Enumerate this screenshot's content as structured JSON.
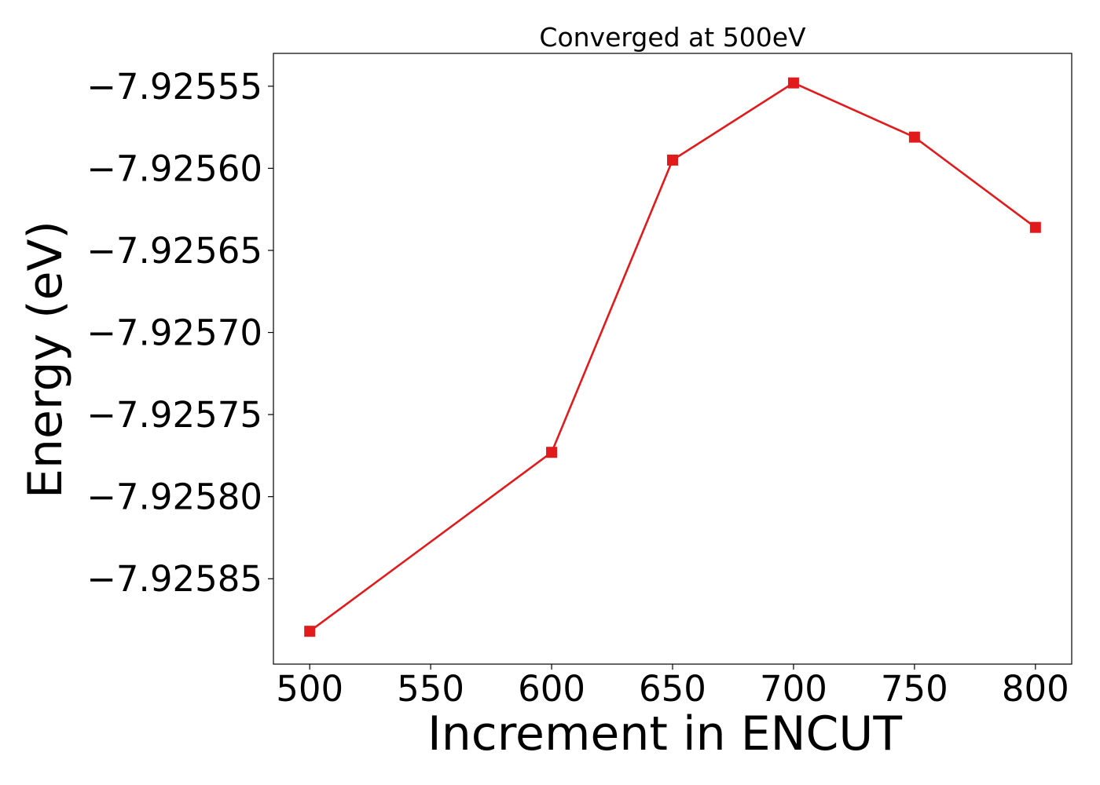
{
  "colors": {
    "series": "#e31a1c",
    "axes": "#000000",
    "background": "#ffffff"
  },
  "chart_data": {
    "type": "line",
    "title": "Converged at 500eV",
    "xlabel": "Increment in ENCUT",
    "ylabel": "Energy (eV)",
    "x": [
      500,
      600,
      650,
      700,
      750,
      800
    ],
    "xlim": [
      485,
      815
    ],
    "ylim": [
      -7.925902,
      -7.92553
    ],
    "xticks": [
      500,
      550,
      600,
      650,
      700,
      750,
      800
    ],
    "xtick_labels": [
      "500",
      "550",
      "600",
      "650",
      "700",
      "750",
      "800"
    ],
    "yticks": [
      -7.92555,
      -7.9256,
      -7.92565,
      -7.9257,
      -7.92575,
      -7.9258,
      -7.92585
    ],
    "ytick_labels": [
      "−7.92555",
      "−7.92560",
      "−7.92565",
      "−7.92570",
      "−7.92575",
      "−7.92580",
      "−7.92585"
    ],
    "grid": false,
    "series": [
      {
        "marker": "square",
        "color": "#e31a1c",
        "values": [
          -7.925882,
          -7.925773,
          -7.925595,
          -7.925548,
          -7.925581,
          -7.925636
        ]
      }
    ]
  }
}
